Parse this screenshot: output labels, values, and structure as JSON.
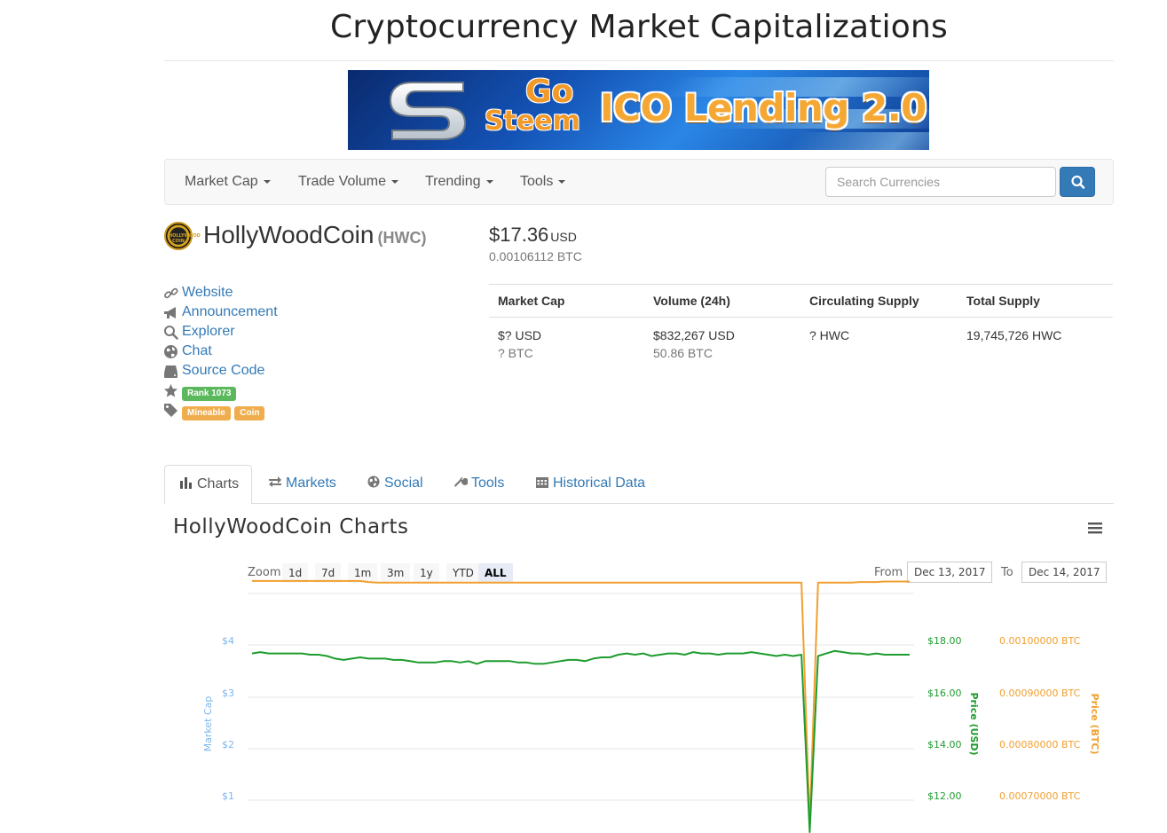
{
  "site": {
    "title": "Cryptocurrency Market Capitalizations"
  },
  "banner": {
    "logo_icon": "gosteem-s-logo-icon",
    "go": "Go",
    "steem": "Steem",
    "headline": "ICO Lending 2.0"
  },
  "nav": {
    "items": [
      {
        "label": "Market Cap"
      },
      {
        "label": "Trade Volume"
      },
      {
        "label": "Trending"
      },
      {
        "label": "Tools"
      }
    ],
    "search_placeholder": "Search Currencies",
    "search_icon": "search-icon"
  },
  "coin": {
    "name": "HollyWoodCoin",
    "symbol": "(HWC)",
    "logo_text": "HOLLYWOOD COIN",
    "price_usd": "$17.36",
    "price_usd_unit": "USD",
    "price_btc": "0.00106112 BTC"
  },
  "links": [
    {
      "icon": "link-icon",
      "label": "Website"
    },
    {
      "icon": "bullhorn-icon",
      "label": "Announcement"
    },
    {
      "icon": "search-icon",
      "label": "Explorer"
    },
    {
      "icon": "globe-icon",
      "label": "Chat"
    },
    {
      "icon": "hdd-icon",
      "label": "Source Code"
    }
  ],
  "rank": {
    "icon": "star-icon",
    "label": "Rank 1073"
  },
  "tags": {
    "icon": "tag-icon",
    "items": [
      "Mineable",
      "Coin"
    ]
  },
  "stats": {
    "headers": [
      "Market Cap",
      "Volume (24h)",
      "Circulating Supply",
      "Total Supply"
    ],
    "market_cap": {
      "usd": "$? USD",
      "btc": "? BTC"
    },
    "volume": {
      "usd": "$832,267 USD",
      "btc": "50.86 BTC"
    },
    "circulating": "? HWC",
    "total": "19,745,726 HWC"
  },
  "tabs": [
    {
      "label": "Charts",
      "icon": "bar-chart-icon",
      "active": true
    },
    {
      "label": "Markets",
      "icon": "exchange-icon"
    },
    {
      "label": "Social",
      "icon": "globe-icon"
    },
    {
      "label": "Tools",
      "icon": "wrench-icon"
    },
    {
      "label": "Historical Data",
      "icon": "calendar-icon"
    }
  ],
  "chart_section": {
    "title": "HollyWoodCoin Charts",
    "menu_icon": "hamburger-menu-icon",
    "zoom_label": "Zoom",
    "zoom_buttons": [
      "1d",
      "7d",
      "1m",
      "3m",
      "1y",
      "YTD",
      "ALL"
    ],
    "zoom_active": "ALL",
    "from_label": "From",
    "from_value": "Dec 13, 2017",
    "to_label": "To",
    "to_value": "Dec 14, 2017"
  },
  "colors": {
    "market_cap": "#7cb5ec",
    "price_usd": "#1e9c2f",
    "price_btc": "#f0a030",
    "link": "#337ab7"
  },
  "chart_data": {
    "type": "line",
    "title": "",
    "axes": {
      "left": {
        "label": "Market Cap",
        "ticks": [
          "$1",
          "$2",
          "$3",
          "$4"
        ],
        "range": [
          0.5,
          4.5
        ]
      },
      "right_usd": {
        "label": "Price (USD)",
        "ticks": [
          "$12.00",
          "$14.00",
          "$16.00",
          "$18.00"
        ],
        "range": [
          11,
          19
        ]
      },
      "right_btc": {
        "label": "Price (BTC)",
        "ticks": [
          "0.00070000 BTC",
          "0.00080000 BTC",
          "0.00090000 BTC",
          "0.00100000 BTC"
        ],
        "range": [
          0.00065,
          0.00105
        ]
      }
    },
    "grid": true,
    "series": [
      {
        "name": "Price (USD)",
        "axis": "right_usd",
        "values": [
          17.5,
          17.55,
          17.5,
          17.5,
          17.5,
          17.5,
          17.5,
          17.45,
          17.45,
          17.4,
          17.3,
          17.25,
          17.3,
          17.35,
          17.3,
          17.3,
          17.3,
          17.25,
          17.25,
          17.2,
          17.15,
          17.15,
          17.15,
          17.2,
          17.2,
          17.15,
          17.2,
          17.1,
          17.2,
          17.2,
          17.2,
          17.2,
          17.15,
          17.15,
          17.1,
          17.1,
          17.15,
          17.2,
          17.25,
          17.25,
          17.2,
          17.3,
          17.35,
          17.35,
          17.45,
          17.5,
          17.45,
          17.5,
          17.4,
          17.45,
          17.5,
          17.5,
          17.45,
          17.55,
          17.5,
          17.5,
          17.45,
          17.5,
          17.5,
          17.5,
          17.55,
          17.5,
          17.45,
          17.4,
          17.45,
          17.4,
          17.45,
          10.4,
          17.4,
          17.5,
          17.6,
          17.55,
          17.5,
          17.5,
          17.45,
          17.5,
          17.45,
          17.45,
          17.45,
          17.45
        ]
      },
      {
        "name": "Price (BTC)",
        "axis": "right_btc",
        "values": [
          0.001115,
          0.001115,
          0.001115,
          0.001115,
          0.001115,
          0.001115,
          0.001115,
          0.001115,
          0.001115,
          0.001115,
          0.001115,
          0.001115,
          0.001115,
          0.001115,
          0.001113,
          0.001112,
          0.001112,
          0.001112,
          0.001112,
          0.001112,
          0.001112,
          0.001112,
          0.001112,
          0.001112,
          0.001112,
          0.001112,
          0.001112,
          0.001112,
          0.001112,
          0.001112,
          0.001112,
          0.001112,
          0.001112,
          0.001112,
          0.001112,
          0.001112,
          0.001112,
          0.001112,
          0.001112,
          0.001112,
          0.001112,
          0.001112,
          0.001112,
          0.001112,
          0.001112,
          0.001112,
          0.001112,
          0.001112,
          0.001112,
          0.001112,
          0.001112,
          0.001112,
          0.001112,
          0.001112,
          0.001112,
          0.001112,
          0.001112,
          0.001112,
          0.001112,
          0.001112,
          0.001112,
          0.001112,
          0.001112,
          0.001112,
          0.001112,
          0.001112,
          0.001112,
          0.000645,
          0.001112,
          0.001112,
          0.001112,
          0.001112,
          0.001112,
          0.001113,
          0.001113,
          0.001113,
          0.001114,
          0.001114,
          0.001114,
          0.001114
        ]
      }
    ]
  }
}
